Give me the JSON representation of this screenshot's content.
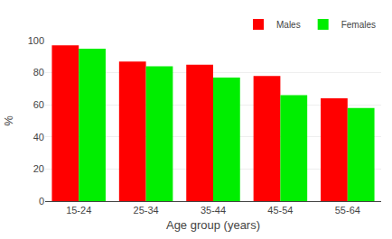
{
  "chart_data": {
    "type": "bar",
    "categories": [
      "15-24",
      "25-34",
      "35-44",
      "45-54",
      "55-64"
    ],
    "series": [
      {
        "name": "Males",
        "color": "#FF0000",
        "values": [
          97,
          87,
          85,
          78,
          64
        ]
      },
      {
        "name": "Females",
        "color": "#00EE00",
        "values": [
          95,
          84,
          77,
          66,
          58
        ]
      }
    ],
    "xlabel": "Age group (years)",
    "ylabel": "%",
    "ylim": [
      0,
      100
    ],
    "yticks": [
      0,
      20,
      40,
      60,
      80,
      100
    ],
    "grid": true,
    "legend": "upper right"
  }
}
